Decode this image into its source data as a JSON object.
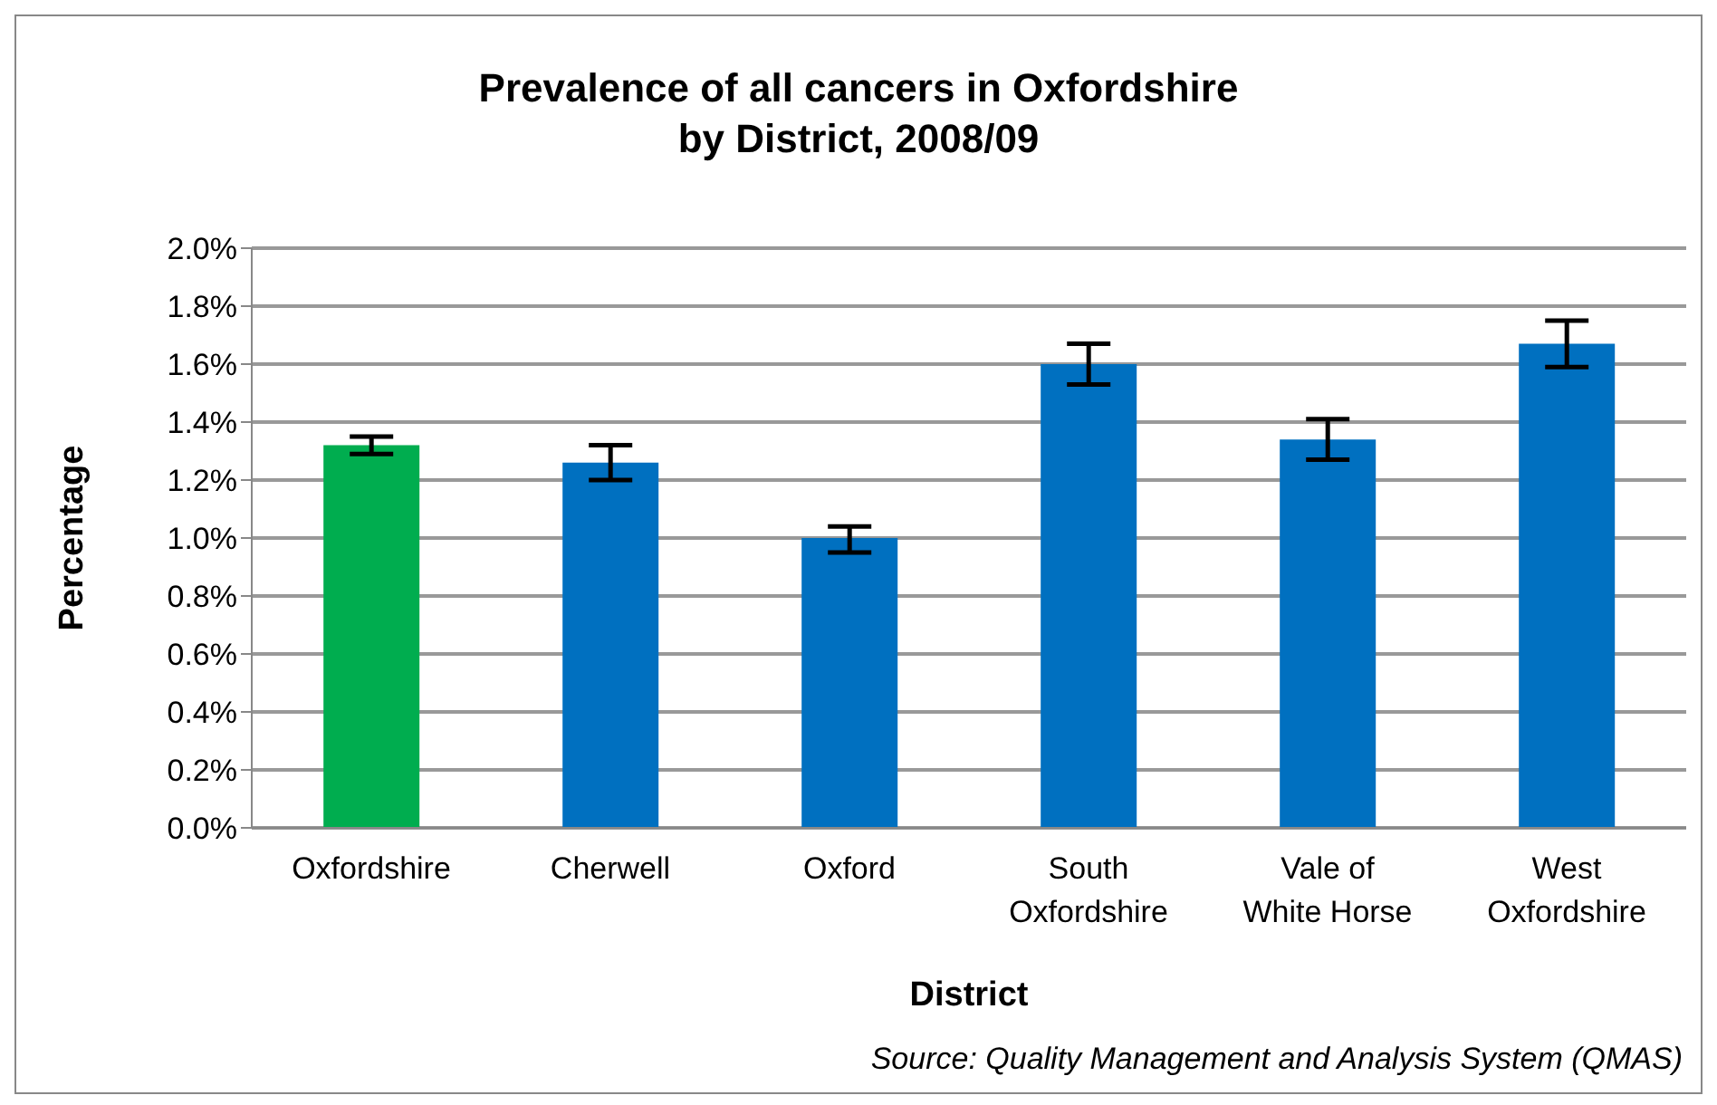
{
  "chart_data": {
    "type": "bar",
    "title": "Prevalence of all cancers in Oxfordshire\nby District, 2008/09",
    "xlabel": "District",
    "ylabel": "Percentage",
    "categories": [
      "Oxfordshire",
      "Cherwell",
      "Oxford",
      "South Oxfordshire",
      "Vale of White Horse",
      "West Oxfordshire"
    ],
    "values": [
      1.32,
      1.26,
      1.0,
      1.6,
      1.34,
      1.67
    ],
    "colors": [
      "#00ad4f",
      "#0070c0",
      "#0070c0",
      "#0070c0",
      "#0070c0",
      "#0070c0"
    ],
    "errors": [
      [
        1.29,
        1.35
      ],
      [
        1.2,
        1.32
      ],
      [
        0.95,
        1.04
      ],
      [
        1.53,
        1.67
      ],
      [
        1.27,
        1.41
      ],
      [
        1.59,
        1.75
      ]
    ],
    "ylim": [
      0,
      2
    ],
    "yticks": [
      {
        "value": 0,
        "label": "0.0%"
      },
      {
        "value": 0.2,
        "label": "0.2%"
      },
      {
        "value": 0.4,
        "label": "0.4%"
      },
      {
        "value": 0.6,
        "label": "0.6%"
      },
      {
        "value": 0.8,
        "label": "0.8%"
      },
      {
        "value": 1,
        "label": "1.0%"
      },
      {
        "value": 1.2,
        "label": "1.2%"
      },
      {
        "value": 1.4,
        "label": "1.4%"
      },
      {
        "value": 1.6,
        "label": "1.6%"
      },
      {
        "value": 1.8,
        "label": "1.8%"
      },
      {
        "value": 2,
        "label": "2.0%"
      }
    ],
    "grid": "y",
    "annotations": [
      "Source: Quality Management and Analysis System (QMAS)"
    ]
  }
}
